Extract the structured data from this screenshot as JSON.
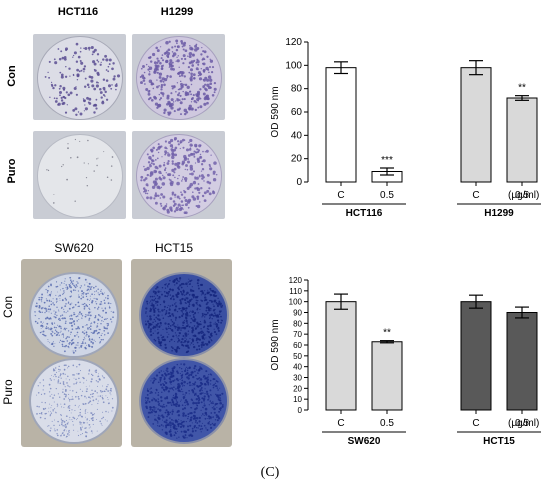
{
  "caption": "(C)",
  "top_panel": {
    "columns": [
      "HCT116",
      "H1299"
    ],
    "rows": [
      "Con",
      "Puro"
    ]
  },
  "bottom_panel": {
    "columns": [
      "SW620",
      "HCT15"
    ],
    "rows": [
      "Con",
      "Puro"
    ]
  },
  "colors": {
    "dish_light": "#e8e9ee",
    "colony_purple": "#6a5a9e",
    "colony_dark_blue": "#22389a",
    "bar_white": "#ffffff",
    "bar_light_gray": "#d9d9d9",
    "bar_dark_gray": "#595959"
  },
  "chart_data": [
    {
      "type": "bar",
      "ylabel": "OD 590 nm",
      "ylim": [
        0,
        120
      ],
      "yticks": [
        0,
        20,
        40,
        60,
        80,
        100,
        120
      ],
      "unit_label": "(μg/ml)",
      "groups": [
        {
          "name": "HCT116",
          "bars": [
            {
              "label": "C",
              "value": 98,
              "error": 5,
              "color": "#ffffff",
              "sig": ""
            },
            {
              "label": "0.5",
              "value": 9,
              "error": 3,
              "color": "#ffffff",
              "sig": "***"
            }
          ]
        },
        {
          "name": "H1299",
          "bars": [
            {
              "label": "C",
              "value": 98,
              "error": 6,
              "color": "#d9d9d9",
              "sig": ""
            },
            {
              "label": "0.5",
              "value": 72,
              "error": 2,
              "color": "#d9d9d9",
              "sig": "**"
            }
          ]
        }
      ]
    },
    {
      "type": "bar",
      "ylabel": "OD 590 nm",
      "ylim": [
        0,
        120
      ],
      "yticks": [
        0,
        10,
        20,
        30,
        40,
        50,
        60,
        70,
        80,
        90,
        100,
        110,
        120
      ],
      "unit_label": "(μg/ml)",
      "groups": [
        {
          "name": "SW620",
          "bars": [
            {
              "label": "C",
              "value": 100,
              "error": 7,
              "color": "#d9d9d9",
              "sig": ""
            },
            {
              "label": "0.5",
              "value": 63,
              "error": 1,
              "color": "#d9d9d9",
              "sig": "**"
            }
          ]
        },
        {
          "name": "HCT15",
          "bars": [
            {
              "label": "C",
              "value": 100,
              "error": 6,
              "color": "#595959",
              "sig": ""
            },
            {
              "label": "0.5",
              "value": 90,
              "error": 5,
              "color": "#595959",
              "sig": ""
            }
          ]
        }
      ]
    }
  ]
}
